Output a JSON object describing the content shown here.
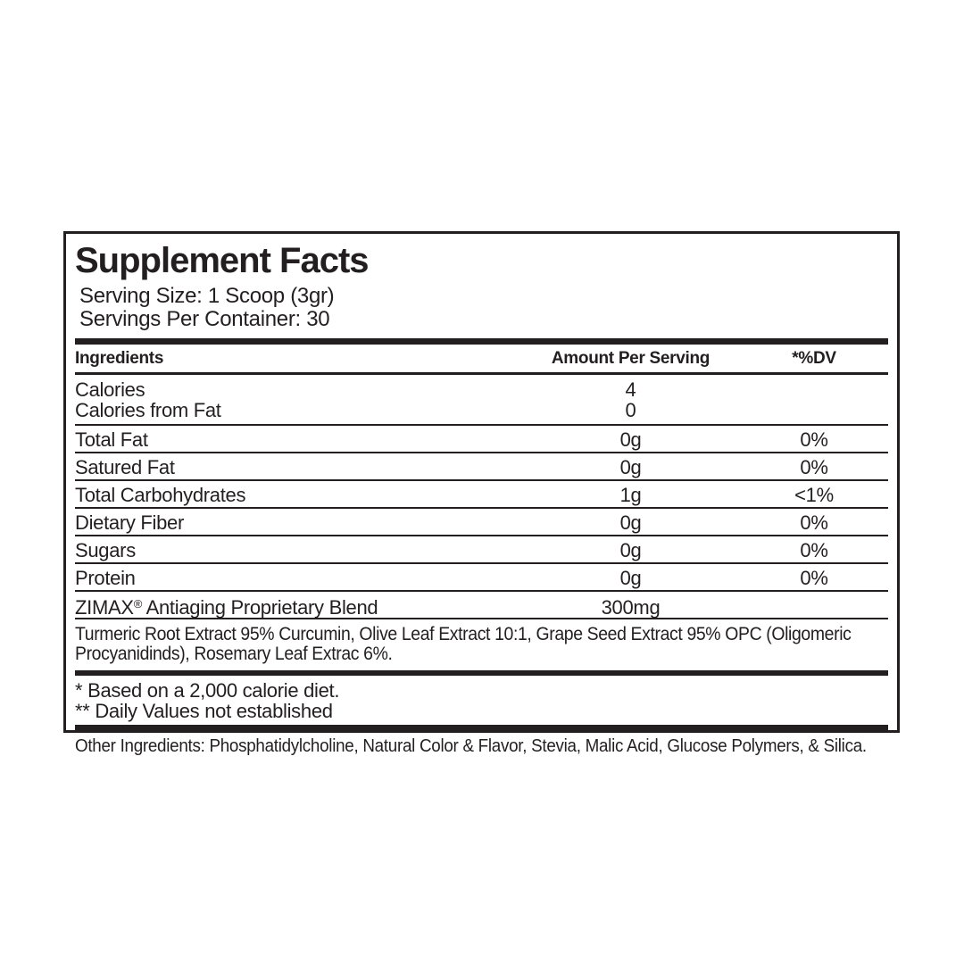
{
  "label": {
    "title": "Supplement Facts",
    "serving_size": "Serving Size: 1 Scoop (3gr)",
    "servings_per_container": "Servings Per Container: 30",
    "columns": {
      "ingredients": "Ingredients",
      "amount": "Amount Per Serving",
      "dv": "*%DV"
    },
    "calorie_rows": [
      {
        "name": "Calories",
        "amount": "4",
        "dv": ""
      },
      {
        "name": "Calories from Fat",
        "amount": "0",
        "dv": ""
      }
    ],
    "nutrient_rows": [
      {
        "name": "Total Fat",
        "amount": "0g",
        "dv": "0%"
      },
      {
        "name": "Satured Fat",
        "amount": "0g",
        "dv": "0%"
      },
      {
        "name": "Total Carbohydrates",
        "amount": "1g",
        "dv": "<1%"
      },
      {
        "name": "Dietary Fiber",
        "amount": "0g",
        "dv": "0%"
      },
      {
        "name": "Sugars",
        "amount": "0g",
        "dv": "0%"
      },
      {
        "name": "Protein",
        "amount": "0g",
        "dv": "0%"
      }
    ],
    "blend_row": {
      "brand": "ZIMAX",
      "reg_mark": "®",
      "name_rest": " Antiaging Proprietary Blend",
      "amount": "300mg",
      "dv": ""
    },
    "blend_description": "Turmeric Root Extract 95% Curcumin, Olive Leaf Extract 10:1, Grape Seed Extract 95% OPC (Oligomeric Procyanidinds), Rosemary Leaf Extrac 6%.",
    "footnotes": [
      "* Based on a 2,000 calorie diet.",
      "** Daily Values not established"
    ],
    "other_ingredients": "Other Ingredients: Phosphatidylcholine, Natural Color & Flavor, Stevia, Malic Acid, Glucose Polymers, & Silica."
  },
  "colors": {
    "text": "#231f20",
    "border": "#231f20",
    "background": "#ffffff"
  }
}
